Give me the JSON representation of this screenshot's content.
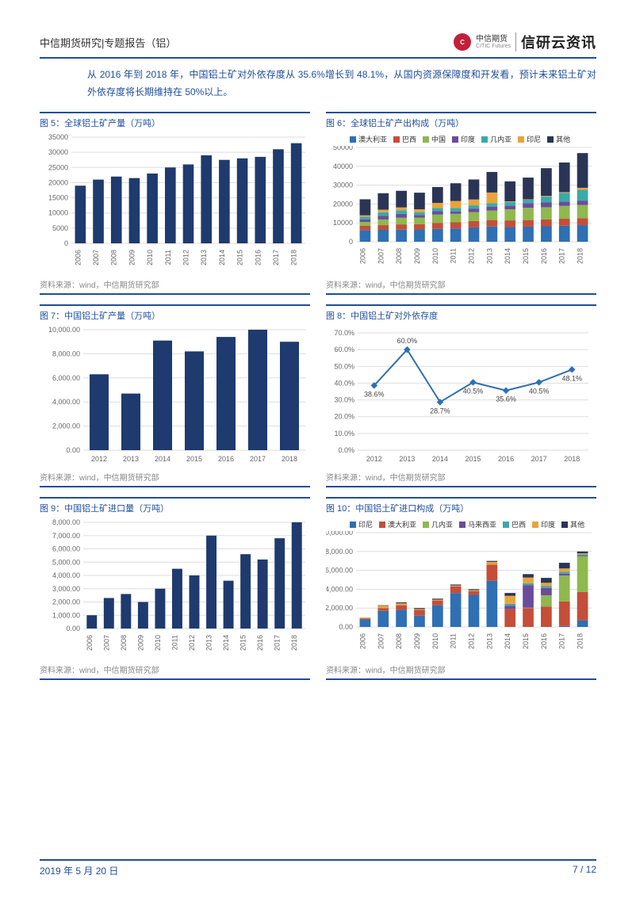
{
  "header": {
    "left": "中信期货研究|专题报告（铝）",
    "logo_label": "中信期货",
    "logo_sub": "CITIC Futures",
    "brand": "信研云资讯"
  },
  "intro": "从 2016 年到 2018 年，中国铝土矿对外依存度从 35.6%增长到 48.1%，从国内资源保障度和开发看，预计未来铝土矿对外依存度将长期维持在 50%以上。",
  "source_label": "资料来源：wind，中信期货研究部",
  "footer": {
    "date": "2019 年 5 月 20 日",
    "page": "7 / 12"
  },
  "colors": {
    "primary": "#1f4e9c",
    "bar": "#1f3a6e",
    "grid": "#dddddd",
    "axis": "#666666",
    "series": {
      "australia": "#2f6fb3",
      "brazil": "#c44e3a",
      "china": "#8fb84e",
      "india": "#6b4c9a",
      "guinea": "#3aa9a9",
      "indonesia": "#e8a33d",
      "malaysia": "#6b4c9a",
      "other": "#2a3556"
    }
  },
  "chart5": {
    "title": "图 5：全球铝土矿产量（万吨）",
    "type": "bar",
    "categories": [
      "2006",
      "2007",
      "2008",
      "2009",
      "2010",
      "2011",
      "2012",
      "2013",
      "2014",
      "2015",
      "2016",
      "2017",
      "2018"
    ],
    "values": [
      19000,
      21000,
      22000,
      21500,
      23000,
      25000,
      26000,
      29000,
      27500,
      28000,
      28500,
      31000,
      33000
    ],
    "ylim": [
      0,
      35000
    ],
    "ytick_step": 5000,
    "bar_color": "#1f3a6e"
  },
  "chart6": {
    "title": "图 6：全球铝土矿产出构成（万吨）",
    "type": "stacked-bar",
    "categories": [
      "2006",
      "2007",
      "2008",
      "2009",
      "2010",
      "2011",
      "2012",
      "2013",
      "2014",
      "2015",
      "2016",
      "2017",
      "2018"
    ],
    "legend": [
      "澳大利亚",
      "巴西",
      "中国",
      "印度",
      "几内亚",
      "印尼",
      "其他"
    ],
    "series": {
      "澳大利亚": [
        6200,
        6300,
        6400,
        6500,
        6800,
        7000,
        7600,
        8100,
        7800,
        8000,
        8200,
        8500,
        8800
      ],
      "巴西": [
        2200,
        2500,
        2800,
        2800,
        3200,
        3300,
        3400,
        3400,
        3500,
        3500,
        3600,
        3700,
        3700
      ],
      "中国": [
        2100,
        3000,
        3500,
        3500,
        4400,
        4500,
        4700,
        5000,
        5900,
        6500,
        6500,
        6800,
        7000
      ],
      "印度": [
        1300,
        2000,
        2100,
        1400,
        1800,
        1300,
        1900,
        2000,
        2000,
        2500,
        2500,
        2300,
        2300
      ],
      "几内亚": [
        1500,
        1800,
        1900,
        1500,
        1700,
        1800,
        1700,
        1900,
        1900,
        1800,
        3100,
        4600,
        5700
      ],
      "印尼": [
        700,
        1400,
        1500,
        1500,
        2700,
        3700,
        3100,
        5700,
        300,
        200,
        400,
        400,
        1100
      ],
      "其他": [
        8500,
        8700,
        8800,
        8800,
        8400,
        9400,
        10600,
        10900,
        10600,
        11500,
        14700,
        15700,
        18400
      ]
    },
    "ylim": [
      0,
      50000
    ],
    "ytick_step": 10000
  },
  "chart7": {
    "title": "图 7：中国铝土矿产量（万吨）",
    "type": "bar",
    "categories": [
      "2012",
      "2013",
      "2014",
      "2015",
      "2016",
      "2017",
      "2018"
    ],
    "values": [
      6300,
      4700,
      9100,
      8200,
      9400,
      10000,
      9000
    ],
    "ylim": [
      0,
      10000
    ],
    "ytick_step": 2000,
    "bar_color": "#1f3a6e"
  },
  "chart8": {
    "title": "图 8：中国铝土矿对外依存度",
    "type": "line",
    "categories": [
      "2012",
      "2013",
      "2014",
      "2015",
      "2016",
      "2017",
      "2018"
    ],
    "values": [
      38.6,
      60.0,
      28.7,
      40.5,
      35.6,
      40.5,
      48.1
    ],
    "labels": [
      "38.6%",
      "60.0%",
      "28.7%",
      "40.5%",
      "35.6%",
      "40.5%",
      "48.1%"
    ],
    "ylim": [
      0,
      70
    ],
    "ytick_step": 10,
    "line_color": "#2f6fb3",
    "marker_color": "#2f6fb3"
  },
  "chart9": {
    "title": "图 9：中国铝土矿进口量（万吨）",
    "type": "bar",
    "categories": [
      "2006",
      "2007",
      "2008",
      "2009",
      "2010",
      "2011",
      "2012",
      "2013",
      "2014",
      "2015",
      "2016",
      "2017",
      "2018"
    ],
    "values": [
      1000,
      2300,
      2600,
      2000,
      3000,
      4500,
      4000,
      7000,
      3600,
      5600,
      5200,
      6800,
      8000
    ],
    "ylim": [
      0,
      8000
    ],
    "ytick_step": 1000,
    "bar_color": "#1f3a6e"
  },
  "chart10": {
    "title": "图 10：中国铝土矿进口构成（万吨）",
    "type": "stacked-bar",
    "categories": [
      "2006",
      "2007",
      "2008",
      "2009",
      "2010",
      "2011",
      "2012",
      "2013",
      "2014",
      "2015",
      "2016",
      "2017",
      "2018"
    ],
    "legend": [
      "印尼",
      "澳大利亚",
      "几内亚",
      "马来西亚",
      "巴西",
      "印度",
      "其他"
    ],
    "series": {
      "印尼": [
        800,
        1700,
        1800,
        1200,
        2300,
        3600,
        3400,
        4900,
        0,
        0,
        0,
        100,
        700
      ],
      "澳大利亚": [
        100,
        300,
        500,
        600,
        500,
        700,
        400,
        1700,
        1900,
        2000,
        2150,
        2600,
        3000
      ],
      "几内亚": [
        0,
        0,
        0,
        0,
        0,
        0,
        0,
        0,
        0,
        40,
        1200,
        2750,
        3800
      ],
      "马来西亚": [
        0,
        0,
        0,
        0,
        0,
        0,
        0,
        0,
        350,
        2400,
        780,
        200,
        100
      ],
      "巴西": [
        0,
        0,
        0,
        0,
        0,
        0,
        0,
        0,
        200,
        200,
        200,
        200,
        100
      ],
      "印度": [
        100,
        250,
        200,
        100,
        100,
        100,
        100,
        300,
        850,
        600,
        350,
        350,
        100
      ],
      "其他": [
        0,
        50,
        100,
        100,
        100,
        100,
        100,
        100,
        300,
        360,
        520,
        600,
        200
      ]
    },
    "ylim": [
      0,
      10000
    ],
    "ytick_step": 2000
  }
}
